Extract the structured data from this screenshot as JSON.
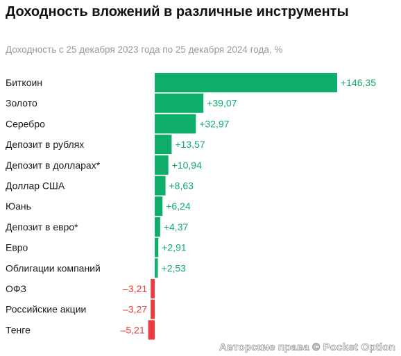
{
  "title": "Доходность вложений в различные инструменты",
  "subtitle": "Доходность с 25 декабря 2023 года по 25 декабря 2024 года, %",
  "watermark": "Авторские права © Pocket Option",
  "colors": {
    "positive": "#0ead69",
    "negative": "#ef3b3b",
    "label": "#1a1a1a"
  },
  "chart_data": {
    "type": "bar",
    "orientation": "horizontal",
    "categories": [
      "Биткоин",
      "Золото",
      "Серебро",
      "Депозит в рублях",
      "Депозит в долларах*",
      "Доллар США",
      "Юань",
      "Депозит в евро*",
      "Евро",
      "Облигации компаний",
      "ОФЗ",
      "Российские акции",
      "Тенге"
    ],
    "values": [
      146.35,
      39.07,
      32.97,
      13.57,
      10.94,
      8.63,
      6.24,
      4.37,
      2.91,
      2.53,
      -3.21,
      -3.27,
      -5.21
    ],
    "value_labels": [
      "+146,35",
      "+39,07",
      "+32,97",
      "+13,57",
      "+10,94",
      "+8,63",
      "+6,24",
      "+4,37",
      "+2,91",
      "+2,53",
      "–3,21",
      "–3,27",
      "–5,21"
    ],
    "title": "Доходность вложений в различные инструменты",
    "subtitle": "Доходность с 25 декабря 2023 года по 25 декабря 2024 года, %",
    "grid": false,
    "legend": false
  }
}
